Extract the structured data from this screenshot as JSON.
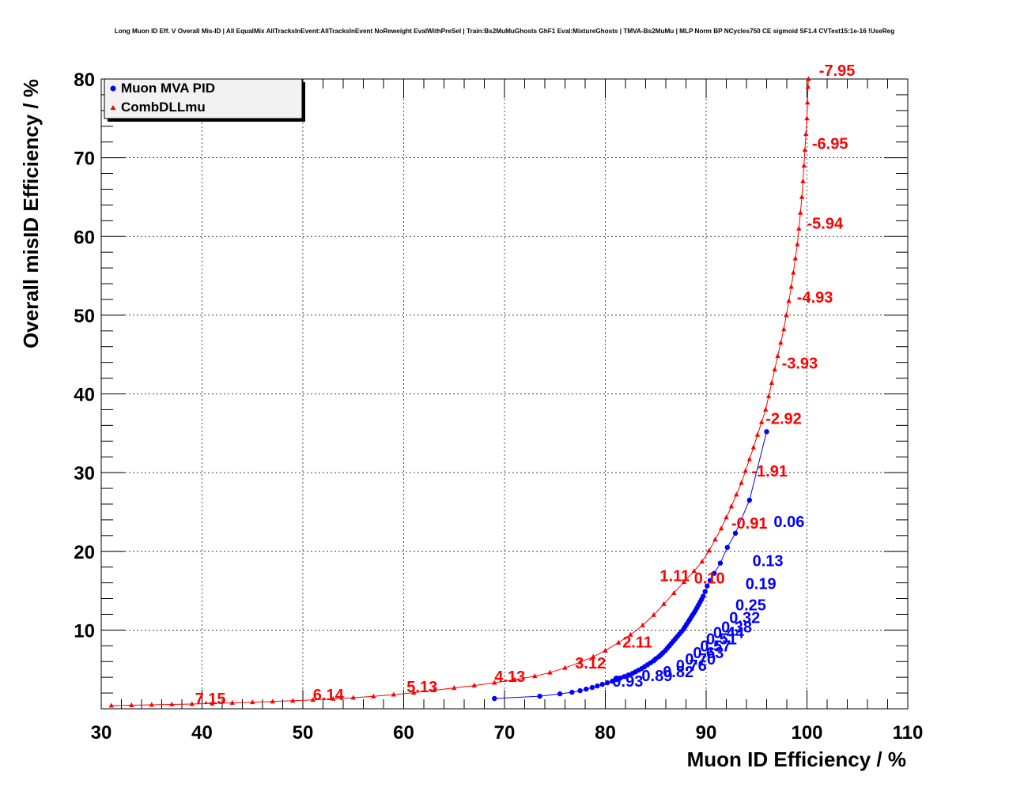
{
  "chart_data": {
    "type": "line",
    "title": "Long Muon ID Eff. V Overall Mis-ID | All EqualMix AllTracksInEvent:AllTracksInEvent NoReweight EvalWithPreSel | Train:Bs2MuMuGhosts GhF1 Eval:MixtureGhosts | TMVA-Bs2MuMu | MLP Norm BP NCycles750 CE sigmoid SF1.4 CVTest15:1e-16 !UseReg",
    "xlabel": "Muon ID Efficiency / %",
    "ylabel": "Overall misID Efficiency / %",
    "xlim": [
      30,
      110
    ],
    "ylim": [
      0,
      80
    ],
    "x_ticks": [
      "30",
      "40",
      "50",
      "60",
      "70",
      "80",
      "90",
      "100",
      "110"
    ],
    "y_ticks": [
      "10",
      "20",
      "30",
      "40",
      "50",
      "60",
      "70",
      "80"
    ],
    "grid": true,
    "legend_position": "top-left",
    "colors": {
      "mva": "#0000ff",
      "dll": "#ff0000"
    },
    "series": [
      {
        "name": "Muon MVA PID",
        "marker": "circle",
        "color": "#0000ff",
        "points": [
          [
            69.0,
            1.3
          ],
          [
            73.5,
            1.6
          ],
          [
            75.5,
            1.9
          ],
          [
            76.7,
            2.1
          ],
          [
            77.5,
            2.3
          ],
          [
            78.1,
            2.5
          ],
          [
            78.7,
            2.7
          ],
          [
            79.2,
            2.9
          ],
          [
            79.7,
            3.1
          ],
          [
            80.2,
            3.3
          ],
          [
            80.7,
            3.5
          ],
          [
            81.1,
            3.7
          ],
          [
            81.5,
            3.9
          ],
          [
            81.9,
            4.1
          ],
          [
            82.3,
            4.3
          ],
          [
            82.7,
            4.5
          ],
          [
            83.0,
            4.7
          ],
          [
            83.3,
            4.9
          ],
          [
            83.6,
            5.1
          ],
          [
            83.9,
            5.35
          ],
          [
            84.2,
            5.6
          ],
          [
            84.5,
            5.85
          ],
          [
            84.8,
            6.1
          ],
          [
            85.0,
            6.35
          ],
          [
            85.3,
            6.6
          ],
          [
            85.5,
            6.85
          ],
          [
            85.7,
            7.1
          ],
          [
            85.95,
            7.4
          ],
          [
            86.15,
            7.7
          ],
          [
            86.35,
            8.0
          ],
          [
            86.55,
            8.3
          ],
          [
            86.75,
            8.6
          ],
          [
            86.95,
            8.9
          ],
          [
            87.15,
            9.2
          ],
          [
            87.35,
            9.5
          ],
          [
            87.55,
            9.8
          ],
          [
            87.75,
            10.1
          ],
          [
            87.9,
            10.4
          ],
          [
            88.05,
            10.7
          ],
          [
            88.2,
            11.0
          ],
          [
            88.35,
            11.3
          ],
          [
            88.5,
            11.6
          ],
          [
            88.65,
            11.9
          ],
          [
            88.8,
            12.2
          ],
          [
            88.95,
            12.5
          ],
          [
            89.1,
            12.85
          ],
          [
            89.25,
            13.2
          ],
          [
            89.4,
            13.55
          ],
          [
            89.55,
            13.9
          ],
          [
            89.7,
            14.3
          ],
          [
            89.9,
            14.9
          ],
          [
            90.1,
            15.6
          ],
          [
            90.4,
            16.3
          ],
          [
            90.8,
            17.2
          ],
          [
            91.4,
            18.5
          ],
          [
            92.1,
            20.5
          ],
          [
            92.9,
            22.3
          ],
          [
            94.3,
            26.5
          ],
          [
            96.0,
            35.2
          ]
        ],
        "labels": [
          {
            "text": "0.93",
            "x": 80.7,
            "y": 2.8
          },
          {
            "text": "0.89",
            "x": 83.6,
            "y": 3.5
          },
          {
            "text": "0.82",
            "x": 85.7,
            "y": 4.0
          },
          {
            "text": "0.76",
            "x": 87.0,
            "y": 4.8
          },
          {
            "text": "0.70",
            "x": 87.9,
            "y": 5.6
          },
          {
            "text": "0.63",
            "x": 88.7,
            "y": 6.4
          },
          {
            "text": "0.57",
            "x": 89.4,
            "y": 7.3
          },
          {
            "text": "0.51",
            "x": 90.0,
            "y": 8.2
          },
          {
            "text": "0.44",
            "x": 90.7,
            "y": 9.0
          },
          {
            "text": "0.38",
            "x": 91.5,
            "y": 9.7
          },
          {
            "text": "0.32",
            "x": 92.3,
            "y": 10.9
          },
          {
            "text": "0.25",
            "x": 92.9,
            "y": 12.5
          },
          {
            "text": "0.19",
            "x": 93.9,
            "y": 15.2
          },
          {
            "text": "0.13",
            "x": 94.6,
            "y": 18.1
          },
          {
            "text": "0.06",
            "x": 96.7,
            "y": 23.1
          }
        ]
      },
      {
        "name": "CombDLLmu",
        "marker": "triangle",
        "color": "#ff0000",
        "points": [
          [
            31.0,
            0.4
          ],
          [
            33.0,
            0.45
          ],
          [
            35.0,
            0.5
          ],
          [
            37.0,
            0.55
          ],
          [
            39.0,
            0.6
          ],
          [
            41.0,
            0.67
          ],
          [
            43.0,
            0.75
          ],
          [
            45.0,
            0.83
          ],
          [
            47.0,
            0.92
          ],
          [
            49.0,
            1.02
          ],
          [
            51.0,
            1.13
          ],
          [
            53.0,
            1.26
          ],
          [
            55.0,
            1.41
          ],
          [
            57.0,
            1.58
          ],
          [
            59.0,
            1.8
          ],
          [
            61.0,
            2.05
          ],
          [
            63.0,
            2.35
          ],
          [
            65.0,
            2.65
          ],
          [
            67.0,
            2.95
          ],
          [
            69.0,
            3.3
          ],
          [
            71.0,
            3.7
          ],
          [
            73.0,
            4.15
          ],
          [
            74.5,
            4.6
          ],
          [
            76.0,
            5.2
          ],
          [
            77.5,
            5.9
          ],
          [
            78.8,
            6.6
          ],
          [
            80.0,
            7.4
          ],
          [
            81.3,
            8.4
          ],
          [
            82.5,
            9.4
          ],
          [
            83.7,
            10.6
          ],
          [
            84.8,
            11.9
          ],
          [
            85.8,
            13.3
          ],
          [
            86.8,
            14.7
          ],
          [
            87.8,
            16.1
          ],
          [
            88.8,
            17.5
          ],
          [
            89.6,
            18.7
          ],
          [
            90.3,
            20.1
          ],
          [
            90.9,
            21.5
          ],
          [
            91.5,
            22.9
          ],
          [
            92.0,
            24.3
          ],
          [
            92.5,
            25.7
          ],
          [
            93.0,
            27.2
          ],
          [
            93.5,
            28.7
          ],
          [
            93.9,
            30.2
          ],
          [
            94.3,
            31.7
          ],
          [
            94.7,
            33.2
          ],
          [
            95.1,
            34.8
          ],
          [
            95.5,
            36.4
          ],
          [
            95.9,
            38.0
          ],
          [
            96.2,
            39.7
          ],
          [
            96.5,
            41.4
          ],
          [
            96.8,
            43.1
          ],
          [
            97.1,
            44.8
          ],
          [
            97.4,
            46.5
          ],
          [
            97.7,
            48.2
          ],
          [
            97.95,
            50.0
          ],
          [
            98.2,
            51.8
          ],
          [
            98.45,
            53.6
          ],
          [
            98.65,
            55.4
          ],
          [
            98.85,
            57.2
          ],
          [
            99.05,
            59.0
          ],
          [
            99.2,
            61.0
          ],
          [
            99.35,
            63.0
          ],
          [
            99.5,
            65.0
          ],
          [
            99.6,
            67.0
          ],
          [
            99.7,
            69.0
          ],
          [
            99.8,
            71.0
          ],
          [
            99.9,
            73.0
          ],
          [
            100.0,
            75.0
          ],
          [
            100.05,
            77.0
          ],
          [
            100.1,
            79.0
          ],
          [
            100.15,
            80.0
          ]
        ],
        "labels": [
          {
            "text": "7.15",
            "x": 39.3,
            "y": 0.6
          },
          {
            "text": "6.14",
            "x": 51.0,
            "y": 1.1
          },
          {
            "text": "5.13",
            "x": 60.3,
            "y": 2.1
          },
          {
            "text": "4.13",
            "x": 69.0,
            "y": 3.4
          },
          {
            "text": "3.12",
            "x": 77.0,
            "y": 5.1
          },
          {
            "text": "2.11",
            "x": 81.7,
            "y": 7.8
          },
          {
            "text": "1.11",
            "x": 85.4,
            "y": 16.2
          },
          {
            "text": "0.10",
            "x": 88.8,
            "y": 15.9
          },
          {
            "text": "-0.91",
            "x": 92.5,
            "y": 22.9
          },
          {
            "text": "-1.91",
            "x": 94.5,
            "y": 29.5
          },
          {
            "text": "-2.92",
            "x": 95.9,
            "y": 36.2
          },
          {
            "text": "-3.93",
            "x": 97.5,
            "y": 43.2
          },
          {
            "text": "-4.93",
            "x": 99.0,
            "y": 51.6
          },
          {
            "text": "-5.94",
            "x": 100.0,
            "y": 61.0
          },
          {
            "text": "-6.95",
            "x": 100.5,
            "y": 71.1
          },
          {
            "text": "-7.95",
            "x": 101.2,
            "y": 80.4
          }
        ]
      }
    ]
  }
}
